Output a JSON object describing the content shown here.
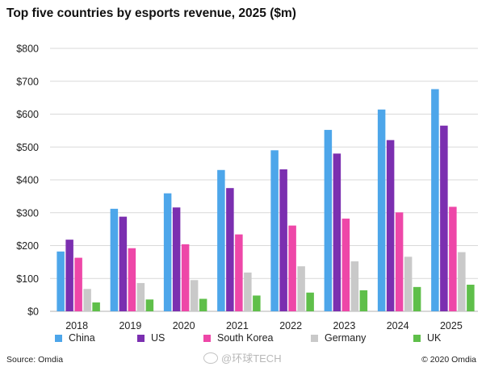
{
  "chart_data": {
    "type": "bar",
    "title": "Top five countries by esports revenue, 2025 ($m)",
    "categories": [
      "2018",
      "2019",
      "2020",
      "2021",
      "2022",
      "2023",
      "2024",
      "2025"
    ],
    "series": [
      {
        "name": "China",
        "color": "#4da6ea",
        "values": [
          182,
          312,
          359,
          430,
          490,
          552,
          614,
          676
        ]
      },
      {
        "name": "US",
        "color": "#7b2fb0",
        "values": [
          218,
          288,
          316,
          375,
          432,
          480,
          521,
          565
        ]
      },
      {
        "name": "South Korea",
        "color": "#ee47a8",
        "values": [
          163,
          192,
          204,
          234,
          261,
          282,
          301,
          318
        ]
      },
      {
        "name": "Germany",
        "color": "#c9c9c9",
        "values": [
          68,
          86,
          95,
          118,
          137,
          152,
          166,
          180
        ]
      },
      {
        "name": "UK",
        "color": "#5fbf4a",
        "values": [
          27,
          36,
          38,
          48,
          57,
          64,
          74,
          81
        ]
      }
    ],
    "ylim": [
      0,
      800
    ],
    "yticks": [
      0,
      100,
      200,
      300,
      400,
      500,
      600,
      700,
      800
    ],
    "ytick_labels": [
      "$0",
      "$100",
      "$200",
      "$300",
      "$400",
      "$500",
      "$600",
      "$700",
      "$800"
    ],
    "grid": true,
    "legend_position": "bottom"
  },
  "footer": {
    "source": "Source: Omdia",
    "copyright": "© 2020 Omdia",
    "watermark": "@环球TECH"
  }
}
